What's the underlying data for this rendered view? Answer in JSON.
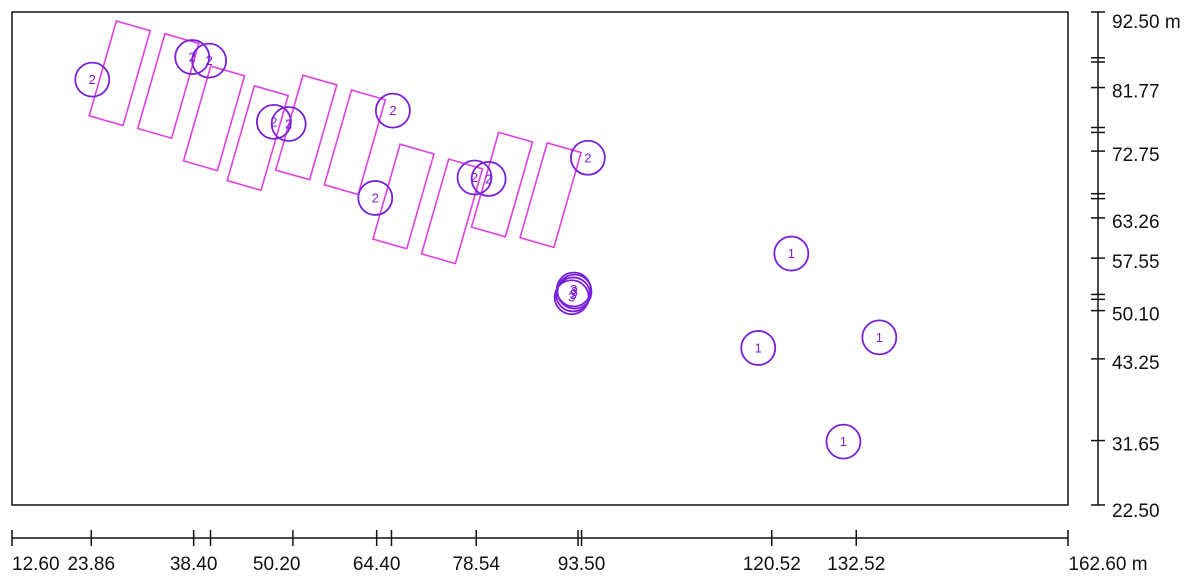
{
  "units": {
    "x": "m",
    "y": "m"
  },
  "colors": {
    "axis": "#111111",
    "rectangle": "#e040e0",
    "marker": "#7a20d8",
    "background": "#ffffff"
  },
  "x_axis": {
    "range": [
      12.6,
      162.6
    ],
    "tick_labels": [
      {
        "value": 12.6,
        "text": "12.60"
      },
      {
        "value": 23.86,
        "text": "23.86"
      },
      {
        "value": 38.4,
        "text": "38.40"
      },
      {
        "value": 50.2,
        "text": "50.20"
      },
      {
        "value": 64.4,
        "text": "64.40"
      },
      {
        "value": 78.54,
        "text": "78.54"
      },
      {
        "value": 93.5,
        "text": "93.50"
      },
      {
        "value": 120.52,
        "text": "120.52"
      },
      {
        "value": 132.52,
        "text": "132.52"
      },
      {
        "value": 162.6,
        "text": "162.60 m"
      }
    ],
    "ticks": [
      12.6,
      23.86,
      38.4,
      40.8,
      52.5,
      64.4,
      66.5,
      78.54,
      93.0,
      93.5,
      120.52,
      132.52,
      162.6
    ]
  },
  "y_axis": {
    "range": [
      22.5,
      92.5
    ],
    "tick_labels": [
      {
        "value": 92.5,
        "text": "92.50 m"
      },
      {
        "value": 81.77,
        "text": "81.77"
      },
      {
        "value": 72.75,
        "text": "72.75"
      },
      {
        "value": 63.26,
        "text": "63.26"
      },
      {
        "value": 57.55,
        "text": "57.55"
      },
      {
        "value": 50.1,
        "text": "50.10"
      },
      {
        "value": 43.25,
        "text": "43.25"
      },
      {
        "value": 31.65,
        "text": "31.65"
      },
      {
        "value": 22.5,
        "text": "22.50"
      }
    ],
    "ticks": [
      92.5,
      86.0,
      85.4,
      81.77,
      76.1,
      75.4,
      72.75,
      66.7,
      66.0,
      63.26,
      57.55,
      52.4,
      51.7,
      50.1,
      43.25,
      31.65,
      22.5
    ]
  },
  "rectangles": [
    {
      "cx": 27.9,
      "cy": 83.8,
      "w": 5.0,
      "h": 14.0,
      "angle": 16
    },
    {
      "cx": 34.8,
      "cy": 82.0,
      "w": 5.0,
      "h": 14.0,
      "angle": 16
    },
    {
      "cx": 41.3,
      "cy": 77.4,
      "w": 5.0,
      "h": 14.0,
      "angle": 16
    },
    {
      "cx": 47.5,
      "cy": 74.6,
      "w": 5.0,
      "h": 14.0,
      "angle": 16
    },
    {
      "cx": 54.4,
      "cy": 76.1,
      "w": 5.0,
      "h": 14.0,
      "angle": 16
    },
    {
      "cx": 61.3,
      "cy": 74.0,
      "w": 5.0,
      "h": 14.0,
      "angle": 16
    },
    {
      "cx": 68.2,
      "cy": 66.3,
      "w": 5.0,
      "h": 14.0,
      "angle": 16
    },
    {
      "cx": 75.1,
      "cy": 64.2,
      "w": 5.0,
      "h": 14.0,
      "angle": 16
    },
    {
      "cx": 82.2,
      "cy": 68.0,
      "w": 5.0,
      "h": 14.0,
      "angle": 16
    },
    {
      "cx": 89.1,
      "cy": 66.5,
      "w": 5.0,
      "h": 14.0,
      "angle": 16
    }
  ],
  "markers": [
    {
      "x": 24.0,
      "y": 82.9,
      "label": "2"
    },
    {
      "x": 38.2,
      "y": 86.1,
      "label": "2"
    },
    {
      "x": 40.6,
      "y": 85.6,
      "label": "2"
    },
    {
      "x": 49.8,
      "y": 76.9,
      "label": "2"
    },
    {
      "x": 51.9,
      "y": 76.6,
      "label": "2"
    },
    {
      "x": 66.7,
      "y": 78.5,
      "label": "2"
    },
    {
      "x": 64.2,
      "y": 66.1,
      "label": "2"
    },
    {
      "x": 78.3,
      "y": 69.0,
      "label": "2"
    },
    {
      "x": 80.3,
      "y": 68.8,
      "label": "2"
    },
    {
      "x": 94.4,
      "y": 71.8,
      "label": "2"
    },
    {
      "x": 92.4,
      "y": 53.1,
      "label": "3"
    },
    {
      "x": 92.5,
      "y": 52.8,
      "label": "3"
    },
    {
      "x": 92.3,
      "y": 52.4,
      "label": "3"
    },
    {
      "x": 92.1,
      "y": 52.0,
      "label": "3"
    },
    {
      "x": 123.3,
      "y": 58.2,
      "label": "1"
    },
    {
      "x": 118.6,
      "y": 44.8,
      "label": "1"
    },
    {
      "x": 135.8,
      "y": 46.3,
      "label": "1"
    },
    {
      "x": 130.7,
      "y": 31.5,
      "label": "1"
    }
  ]
}
